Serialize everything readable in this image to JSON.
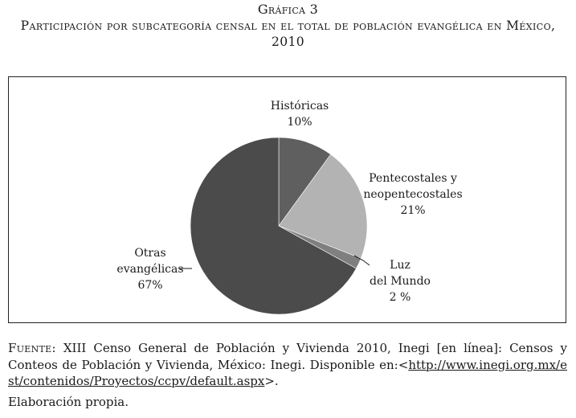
{
  "figure": {
    "label": "Gráfica 3",
    "title": "Participación por subcategoría censal en el total de población evangélica en México, 2010"
  },
  "chart_data": {
    "type": "pie",
    "title": "",
    "slices": [
      {
        "name": "Históricas",
        "value": 10,
        "value_label": "10%",
        "color": "#5f5f5f"
      },
      {
        "name": "Pentecostales y neopentecostales",
        "value": 21,
        "value_label": "21%",
        "color": "#b3b3b3"
      },
      {
        "name": "Luz del Mundo",
        "value": 2,
        "value_label": "2 %",
        "color": "#7f7f7f"
      },
      {
        "name": "Otras evangélicas",
        "value": 67,
        "value_label": "67%",
        "color": "#4b4b4b"
      }
    ],
    "label_lines": {
      "historicas": [
        "Históricas"
      ],
      "pentecostales": [
        "Pentecostales y",
        "neopentecostales"
      ],
      "luz": [
        "Luz",
        "del Mundo"
      ],
      "otras": [
        "Otras",
        "evangélicas"
      ]
    },
    "start": "12 o'clock",
    "direction": "clockwise",
    "legend": "none"
  },
  "source": {
    "label": "Fuente:",
    "text": "XIII Censo General de Población y Vivienda 2010, Inegi [en línea]: Censos y Conteos de Población y Vivienda, México: Inegi. Disponible en:<",
    "url": "http://www.inegi.org.mx/est/contenidos/Proyectos/ccpv/default.aspx",
    "suffix": ">.",
    "credit": "Elaboración propia."
  }
}
